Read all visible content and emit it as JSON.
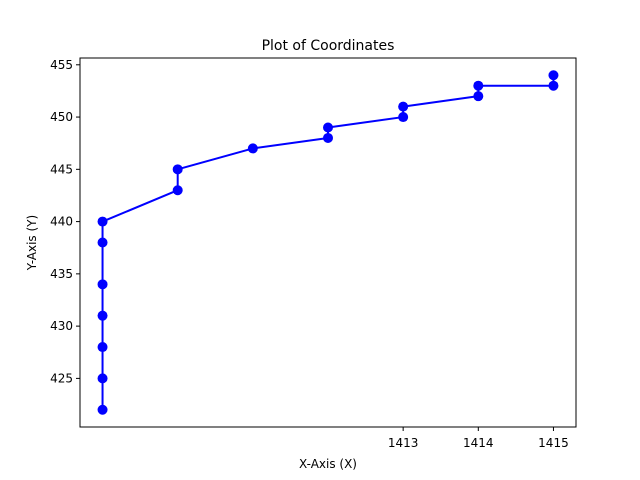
{
  "chart_data": {
    "type": "line",
    "title": "Plot of Coordinates",
    "xlabel": "X-Axis (X)",
    "ylabel": "Y-Axis (Y)",
    "xlim": [
      1408.7,
      1415.3
    ],
    "ylim": [
      420.35,
      455.65
    ],
    "xticks": [
      1413,
      1414,
      1415
    ],
    "yticks": [
      425,
      430,
      435,
      440,
      445,
      450,
      455
    ],
    "grid": false,
    "marker": "circle",
    "series": [
      {
        "name": "",
        "color": "#0000ff",
        "x": [
          1409,
          1409,
          1409,
          1409,
          1409,
          1409,
          1409,
          1410,
          1410,
          1411,
          1412,
          1412,
          1413,
          1413,
          1414,
          1414,
          1415,
          1415
        ],
        "y": [
          422,
          425,
          428,
          431,
          434,
          438,
          440,
          443,
          445,
          447,
          448,
          449,
          450,
          451,
          452,
          453,
          453,
          454
        ]
      }
    ]
  }
}
